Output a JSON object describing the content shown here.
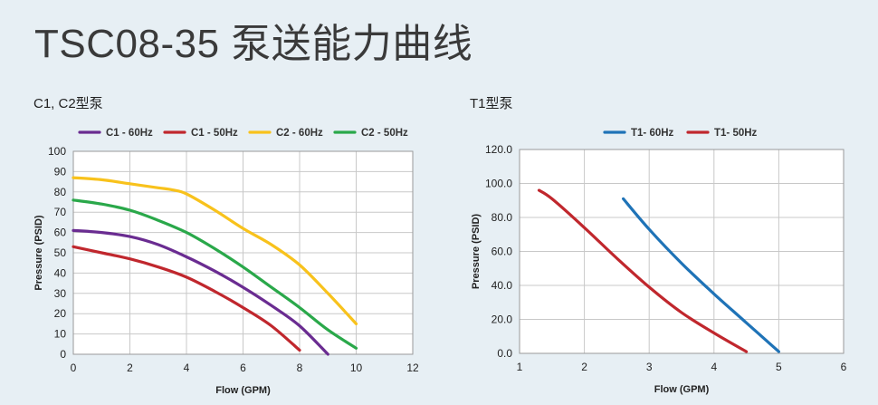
{
  "page": {
    "title": "TSC08-35 泵送能力曲线"
  },
  "chart_data": [
    {
      "type": "line",
      "title": "C1, C2型泵",
      "xlabel": "Flow (GPM)",
      "ylabel": "Pressure (PSID)",
      "xlim": [
        0,
        12
      ],
      "ylim": [
        0,
        100
      ],
      "x_ticks": [
        0,
        2,
        4,
        6,
        8,
        10,
        12
      ],
      "x_tick_labels": [
        "0",
        "2",
        "4",
        "6",
        "8",
        "10",
        "12"
      ],
      "y_ticks": [
        0,
        10,
        20,
        30,
        40,
        50,
        60,
        70,
        80,
        90,
        100
      ],
      "y_tick_labels": [
        "0",
        "10",
        "20",
        "30",
        "40",
        "50",
        "60",
        "70",
        "80",
        "90",
        "100"
      ],
      "grid": true,
      "legend_position": "top",
      "series": [
        {
          "name": "C1 - 60Hz",
          "color": "#6a2c91",
          "x": [
            0,
            1,
            2,
            3,
            4,
            5,
            6,
            7,
            8,
            9
          ],
          "y": [
            61,
            60,
            58,
            54,
            48,
            41,
            33,
            24,
            14,
            0
          ]
        },
        {
          "name": "C1 - 50Hz",
          "color": "#c0272d",
          "x": [
            0,
            1,
            2,
            3,
            4,
            5,
            6,
            7,
            8
          ],
          "y": [
            53,
            50,
            47,
            43,
            38,
            31,
            23,
            14,
            2
          ]
        },
        {
          "name": "C2 - 60Hz",
          "color": "#f8c21c",
          "x": [
            0,
            1,
            2,
            3,
            3.5,
            4,
            5,
            6,
            7,
            8,
            9,
            10
          ],
          "y": [
            87,
            86,
            84,
            82,
            81,
            79,
            71,
            62,
            54,
            44,
            30,
            15
          ]
        },
        {
          "name": "C2 - 50Hz",
          "color": "#2aa84a",
          "x": [
            0,
            1,
            2,
            3,
            4,
            5,
            6,
            7,
            8,
            9,
            10
          ],
          "y": [
            76,
            74,
            71,
            66,
            60,
            52,
            43,
            33,
            23,
            12,
            3
          ]
        }
      ]
    },
    {
      "type": "line",
      "title": "T1型泵",
      "xlabel": "Flow (GPM)",
      "ylabel": "Pressure (PSID)",
      "xlim": [
        1,
        6
      ],
      "ylim": [
        0,
        120
      ],
      "x_ticks": [
        1,
        2,
        3,
        4,
        5,
        6
      ],
      "x_tick_labels": [
        "1",
        "2",
        "3",
        "4",
        "5",
        "6"
      ],
      "y_ticks": [
        0,
        20,
        40,
        60,
        80,
        100,
        120
      ],
      "y_tick_labels": [
        "0.0",
        "20.0",
        "40.0",
        "60.0",
        "80.0",
        "100.0",
        "120.0"
      ],
      "grid": true,
      "legend_position": "top",
      "series": [
        {
          "name": "T1- 60Hz",
          "color": "#1f73b7",
          "x": [
            2.6,
            3.0,
            3.5,
            4.0,
            4.5,
            5.0
          ],
          "y": [
            91,
            73,
            53,
            35,
            18,
            1
          ]
        },
        {
          "name": "T1- 50Hz",
          "color": "#c0272d",
          "x": [
            1.3,
            1.5,
            2.0,
            2.5,
            3.0,
            3.5,
            4.0,
            4.5
          ],
          "y": [
            96,
            91,
            74,
            56,
            39,
            24,
            12,
            1
          ]
        }
      ]
    }
  ]
}
